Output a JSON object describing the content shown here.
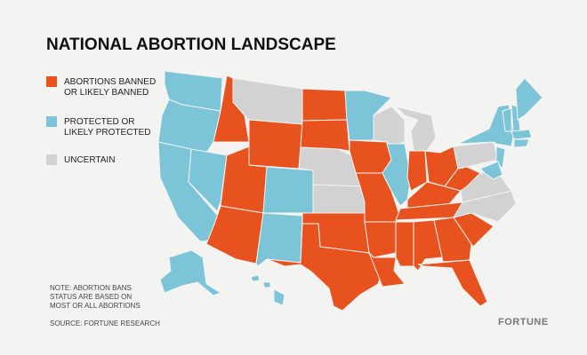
{
  "header": {
    "title": "NATIONAL ABORTION LANDSCAPE"
  },
  "legend": [
    {
      "lines": [
        "ABORTIONS BANNED",
        "OR LIKELY BANNED"
      ],
      "color": "#e8521f"
    },
    {
      "lines": [
        "PROTECTED OR",
        "LIKELY PROTECTED"
      ],
      "color": "#7cc4d8"
    },
    {
      "lines": [
        "UNCERTAIN"
      ],
      "color": "#d2d2d2"
    }
  ],
  "note": [
    "NOTE: ABORTION BANS",
    "STATUS ARE BASED ON",
    "MOST OR ALL ABORTIONS"
  ],
  "source": "SOURCE: FORTUNE RESEARCH",
  "brand": "FORTUNE"
}
